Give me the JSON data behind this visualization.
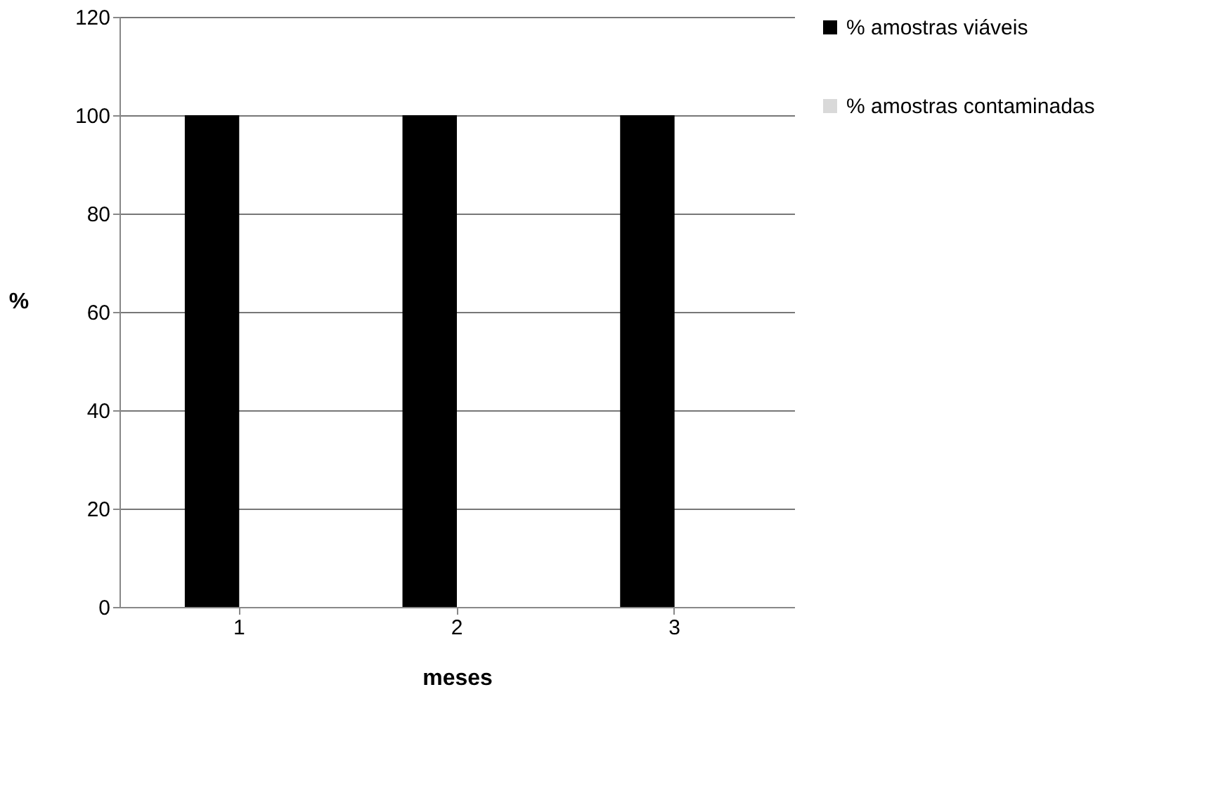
{
  "chart_data": {
    "type": "bar",
    "categories": [
      "1",
      "2",
      "3"
    ],
    "series": [
      {
        "name": "% amostras viáveis",
        "color": "#000000",
        "values": [
          100,
          100,
          100
        ]
      },
      {
        "name": "% amostras contaminadas",
        "color": "#d9d9d9",
        "values": [
          0,
          0,
          0
        ]
      }
    ],
    "xlabel": "meses",
    "ylabel": "%",
    "ylim": [
      0,
      120
    ],
    "yticks": [
      0,
      20,
      40,
      60,
      80,
      100,
      120
    ],
    "grid": "y",
    "legend": "right"
  }
}
